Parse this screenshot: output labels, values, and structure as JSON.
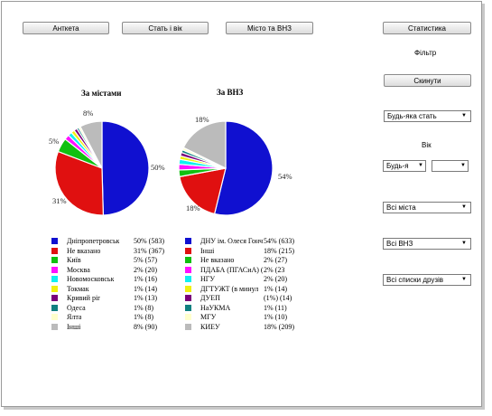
{
  "toolbar": {
    "tab_profiles": "Анткета",
    "tab_sex_age": "Стать і вік",
    "tab_city_uni": "Місто та ВНЗ",
    "stats": "Статистика"
  },
  "filter": {
    "title": "Фільтр",
    "reset": "Скинути",
    "sex": "Будь-яка стать",
    "age_label": "Вік",
    "age_from": "Будь-я",
    "age_to": "",
    "cities": "Всі міста",
    "unis": "Всі ВНЗ",
    "friends": "Всі списки друзів"
  },
  "colors": {
    "blue": "#1010d0",
    "red": "#e01010",
    "green": "#10c010",
    "magenta": "#ff10ff",
    "cyan": "#10f0f0",
    "purple": "#7a007a",
    "yellow": "#f0f010",
    "teal": "#108080",
    "pale": "#ffffcc",
    "gray": "#bbbbbb"
  },
  "chart_data": [
    {
      "type": "pie",
      "title": "За містами",
      "slices": [
        {
          "name": "Дніпропетровськ",
          "value": 583,
          "label": "50% (583)",
          "color": "#1010d0"
        },
        {
          "name": "Не вказано",
          "value": 367,
          "label": "31% (367)",
          "color": "#e01010"
        },
        {
          "name": "Київ",
          "value": 57,
          "label": "5% (57)",
          "color": "#10c010"
        },
        {
          "name": "Москва",
          "value": 20,
          "label": "2% (20)",
          "color": "#ff10ff"
        },
        {
          "name": "Новомосковськ",
          "value": 16,
          "label": "1% (16)",
          "color": "#10f0f0"
        },
        {
          "name": "Токмак",
          "value": 14,
          "label": "1% (14)",
          "color": "#f0f010"
        },
        {
          "name": "Кривий ріг",
          "value": 13,
          "label": "1% (13)",
          "color": "#7a007a"
        },
        {
          "name": "Одеса",
          "value": 8,
          "label": "1% (8)",
          "color": "#108080"
        },
        {
          "name": "Ялта",
          "value": 8,
          "label": "1% (8)",
          "color": "#ffffcc"
        },
        {
          "name": "Інші",
          "value": 90,
          "label": "8% (90)",
          "color": "#bbbbbb"
        }
      ],
      "slice_labels": [
        "50%",
        "31%",
        "5%",
        "8%"
      ]
    },
    {
      "type": "pie",
      "title": "За ВНЗ",
      "slices": [
        {
          "name": "ДНУ ім. Олеся Гончара",
          "value": 633,
          "label": "54% (633)",
          "color": "#1010d0"
        },
        {
          "name": "Інші",
          "value": 215,
          "label": "18% (215)",
          "color": "#e01010"
        },
        {
          "name": "Не вказано",
          "value": 27,
          "label": "2% (27)",
          "color": "#10c010"
        },
        {
          "name": "ПДАБА (ПГАСиА) (в ми",
          "value": 23,
          "label": "2% (23",
          "color": "#ff10ff"
        },
        {
          "name": "НГУ",
          "value": 20,
          "label": "2% (20)",
          "color": "#10f0f0"
        },
        {
          "name": "ДГТУЖТ (в минул",
          "value": 14,
          "label": "1% (14)",
          "color": "#f0f010"
        },
        {
          "name": "ДУЕП",
          "value": 14,
          "label": "(1%) (14)",
          "color": "#7a007a"
        },
        {
          "name": "НаУКМА",
          "value": 11,
          "label": "1% (11)",
          "color": "#108080"
        },
        {
          "name": "МГУ",
          "value": 10,
          "label": "1% (10)",
          "color": "#ffffcc"
        },
        {
          "name": "КИЕУ",
          "value": 209,
          "label": "18% (209)",
          "color": "#bbbbbb"
        }
      ],
      "slice_labels": [
        "54%",
        "18%",
        "18%"
      ]
    }
  ]
}
